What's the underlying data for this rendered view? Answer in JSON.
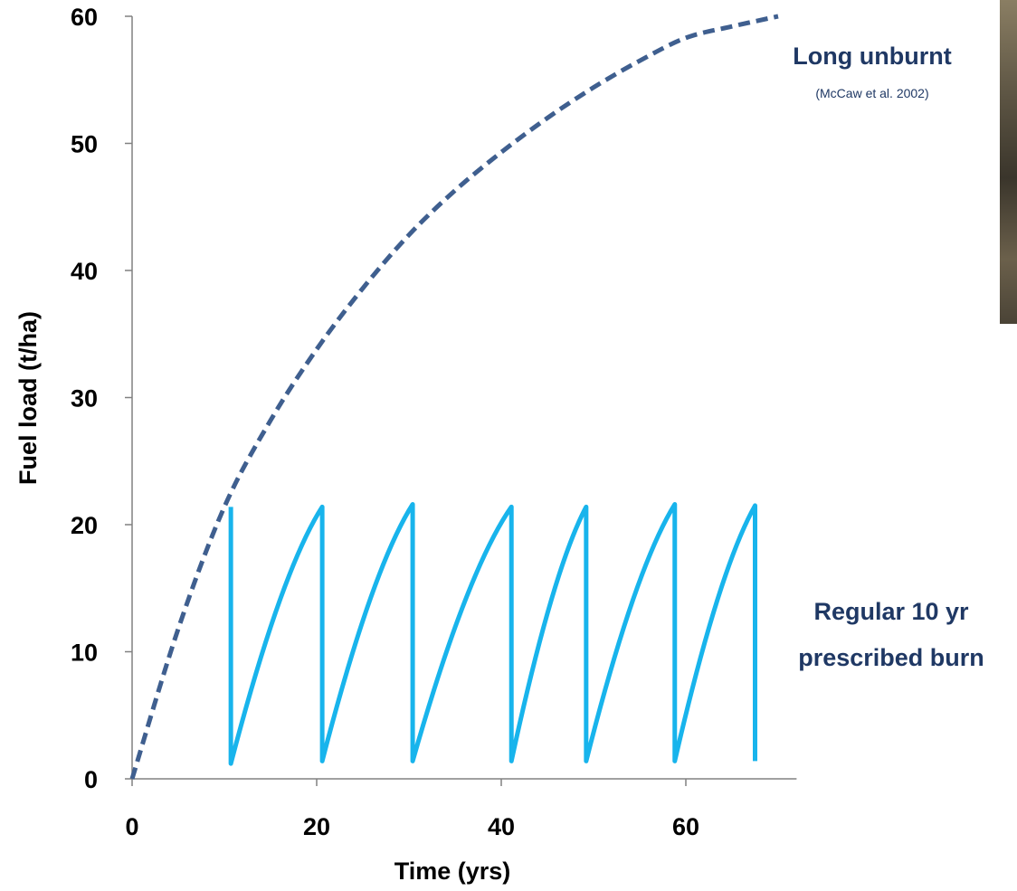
{
  "chart_data": {
    "type": "line",
    "xlabel": "Time (yrs)",
    "ylabel": "Fuel load (t/ha)",
    "xlim": [
      0,
      72
    ],
    "ylim": [
      0,
      60
    ],
    "x_ticks": [
      0,
      20,
      40,
      60
    ],
    "y_ticks": [
      0,
      10,
      20,
      30,
      40,
      50,
      60
    ],
    "grid": false,
    "series": [
      {
        "name": "Long unburnt",
        "style": "dashed",
        "color": "#3f5f8f",
        "x": [
          0,
          5,
          10,
          15,
          20,
          25,
          30,
          35,
          40,
          45,
          50,
          55,
          60,
          65,
          70
        ],
        "y": [
          0,
          11.8,
          21.4,
          28.2,
          33.8,
          38.6,
          42.8,
          46.3,
          49.3,
          52.0,
          54.4,
          56.5,
          58.3,
          59.2,
          60.0
        ]
      },
      {
        "name": "Regular 10 yr prescribed burn",
        "style": "solid",
        "color": "#18b4ec",
        "x": [
          10.7,
          10.7,
          20.6,
          20.6,
          30.4,
          30.4,
          41.1,
          41.1,
          49.2,
          49.2,
          58.8,
          58.8,
          67.5,
          67.5
        ],
        "y": [
          21.4,
          1.2,
          21.4,
          1.4,
          21.6,
          1.4,
          21.4,
          1.4,
          21.4,
          1.4,
          21.6,
          1.4,
          21.5,
          1.4
        ]
      }
    ],
    "annotations": [
      {
        "text": "Long unburnt",
        "sub": "(McCaw et al. 2002)"
      },
      {
        "text": "Regular 10 yr",
        "text2": "prescribed burn"
      }
    ]
  },
  "colors": {
    "axis": "#808080",
    "annotation": "#1f3864",
    "text": "#000000"
  }
}
